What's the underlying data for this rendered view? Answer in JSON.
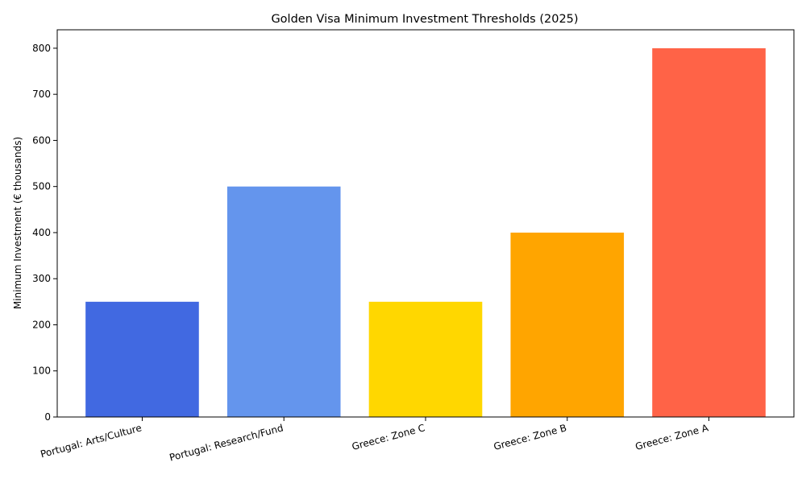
{
  "chart_data": {
    "type": "bar",
    "title": "Golden Visa Minimum Investment Thresholds (2025)",
    "xlabel": "",
    "ylabel": "Minimum Investment (€ thousands)",
    "categories": [
      "Portugal: Arts/Culture",
      "Portugal: Research/Fund",
      "Greece: Zone C",
      "Greece: Zone B",
      "Greece: Zone A"
    ],
    "values": [
      250,
      500,
      250,
      400,
      800
    ],
    "colors": [
      "#4169E1",
      "#6495ED",
      "#FFD700",
      "#FFA500",
      "#FF6347"
    ],
    "ylim": [
      0,
      840
    ],
    "yticks": [
      0,
      100,
      200,
      300,
      400,
      500,
      600,
      700,
      800
    ],
    "grid": false,
    "legend": "none"
  }
}
